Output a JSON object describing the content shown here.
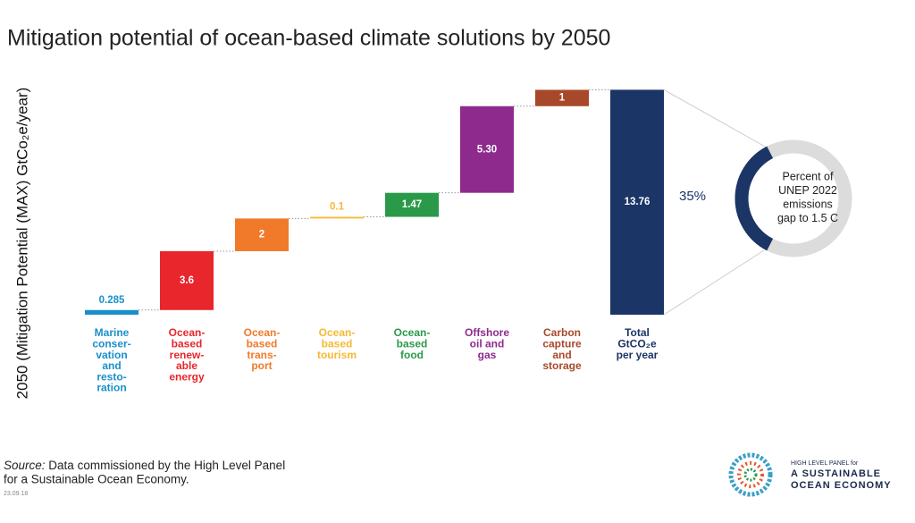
{
  "chart_data": {
    "type": "waterfall",
    "title": "Mitigation potential of ocean-based climate solutions by 2050",
    "y_label": "2050 (Mitigation Potential (MAX) GtCo₂e/year)",
    "categories": [
      [
        "Marine",
        "conser-",
        "vation",
        "and",
        "resto-",
        "ration"
      ],
      [
        "Ocean-",
        "based",
        "renew-",
        "able",
        "energy"
      ],
      [
        "Ocean-",
        "based",
        "trans-",
        "port"
      ],
      [
        "Ocean-",
        "based",
        "tourism"
      ],
      [
        "Ocean-",
        "based",
        "food"
      ],
      [
        "Offshore",
        "oil and",
        "gas"
      ],
      [
        "Carbon",
        "capture",
        "and",
        "storage"
      ],
      [
        "Total",
        "GtCO₂e",
        "per year"
      ]
    ],
    "values": [
      0.285,
      3.6,
      2,
      0.1,
      1.47,
      5.3,
      1,
      13.76
    ],
    "value_labels": [
      "0.285",
      "3.6",
      "2",
      "0.1",
      "1.47",
      "5.30",
      "1",
      "13.76"
    ],
    "colors": [
      "#1a8fc9",
      "#e8262b",
      "#f07a2a",
      "#f5b935",
      "#2a9a4a",
      "#8e2a8e",
      "#a8482a",
      "#1b3566"
    ],
    "ylim": [
      0,
      14
    ],
    "annotation": {
      "value": 35,
      "label": "35%",
      "text": [
        "Percent of",
        "UNEP 2022",
        "emissions",
        "gap to 1.5 C"
      ]
    },
    "source": {
      "prefix": "Source:",
      "lines": [
        "Data commissioned by the High Level Panel",
        "for a Sustainable Ocean Economy."
      ]
    },
    "date": "23.09.18",
    "logo": [
      "HIGH LEVEL PANEL for",
      "A SUSTAINABLE",
      "OCEAN ECONOMY"
    ]
  }
}
